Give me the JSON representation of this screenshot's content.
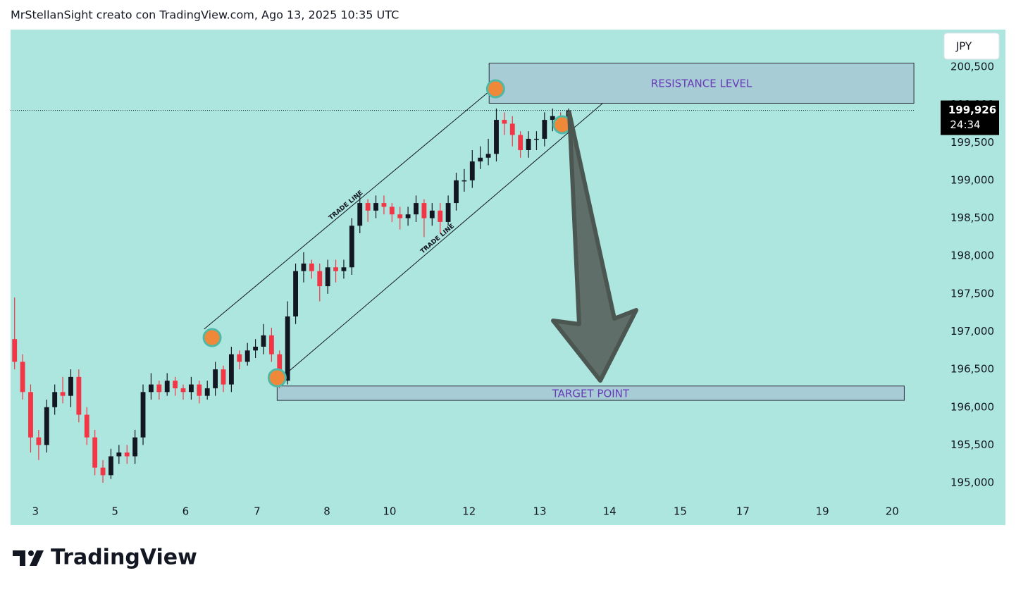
{
  "header": {
    "title": "MrStellanSight creato con TradingView.com, Ago 13, 2025 10:35 UTC",
    "brand": "TradingView"
  },
  "chart_data": {
    "type": "candlestick",
    "currency": "JPY",
    "up_color": "#131722",
    "down_color": "#f23645",
    "background": "#ade6df",
    "open": [
      196900,
      196600,
      196200,
      195600,
      195500,
      196000,
      196200,
      196150,
      196400,
      195900,
      195600,
      195200,
      195100,
      195350,
      195400,
      195350,
      195600,
      196200,
      196300,
      196200,
      196350,
      196250,
      196200,
      196300,
      196150,
      196250,
      196500,
      196300,
      196700,
      196600,
      196750,
      196800,
      196950,
      196700,
      196350,
      197200,
      197800,
      197900,
      197800,
      197600,
      197850,
      197800,
      197850,
      198400,
      198700,
      198600,
      198700,
      198650,
      198550,
      198500,
      198550,
      198700,
      198500,
      198600,
      198450,
      198700,
      199000,
      199000,
      199250,
      199300,
      199350,
      199800,
      199750,
      199600,
      199400,
      199550,
      199550,
      199800,
      199850,
      199750
    ],
    "high": [
      197450,
      196700,
      196300,
      195700,
      196100,
      196300,
      196400,
      196500,
      196500,
      196000,
      195700,
      195300,
      195450,
      195500,
      195500,
      195700,
      196300,
      196450,
      196350,
      196450,
      196400,
      196300,
      196400,
      196350,
      196350,
      196600,
      196550,
      196800,
      196750,
      196850,
      196900,
      197100,
      197050,
      196750,
      197400,
      197900,
      198050,
      197950,
      197900,
      197950,
      197950,
      197950,
      198500,
      198800,
      198750,
      198800,
      198800,
      198700,
      198650,
      198650,
      198800,
      198750,
      198700,
      198700,
      198800,
      199100,
      199150,
      199400,
      199450,
      199550,
      199950,
      199900,
      199850,
      199650,
      199650,
      199650,
      199900,
      199950,
      199900,
      199950
    ],
    "low": [
      196500,
      196100,
      195400,
      195300,
      195400,
      195900,
      196050,
      196000,
      195800,
      195500,
      195100,
      195000,
      195050,
      195250,
      195250,
      195250,
      195500,
      196100,
      196100,
      196150,
      196150,
      196100,
      196100,
      196050,
      196100,
      196150,
      196200,
      196200,
      196500,
      196550,
      196650,
      196700,
      196600,
      196250,
      196300,
      197100,
      197650,
      197700,
      197400,
      197500,
      197650,
      197700,
      197750,
      198300,
      198450,
      198500,
      198550,
      198450,
      198350,
      198400,
      198450,
      198250,
      198400,
      198300,
      198400,
      198600,
      198850,
      198900,
      199150,
      199200,
      199250,
      199600,
      199450,
      199300,
      199300,
      199400,
      199450,
      199650,
      199650,
      199650
    ],
    "close": [
      196600,
      196200,
      195600,
      195500,
      196000,
      196200,
      196150,
      196400,
      195900,
      195600,
      195200,
      195100,
      195350,
      195400,
      195350,
      195600,
      196200,
      196300,
      196200,
      196350,
      196250,
      196200,
      196300,
      196150,
      196250,
      196500,
      196300,
      196700,
      196600,
      196750,
      196800,
      196950,
      196700,
      196350,
      197200,
      197800,
      197900,
      197800,
      197600,
      197850,
      197800,
      197850,
      198400,
      198700,
      198600,
      198700,
      198650,
      198550,
      198500,
      198550,
      198700,
      198500,
      198600,
      198450,
      198700,
      199000,
      199000,
      199250,
      199300,
      199350,
      199800,
      199750,
      199600,
      199400,
      199550,
      199550,
      199800,
      199850,
      199750,
      199926
    ],
    "last_price": 199926,
    "last_price_label": "199,926",
    "countdown": "24:34",
    "xlim": [
      0,
      123.9
    ],
    "ylim": [
      194441,
      200994
    ],
    "xticks": [
      {
        "value": 3.1,
        "label": "3"
      },
      {
        "value": 13.0,
        "label": "5"
      },
      {
        "value": 21.8,
        "label": "6"
      },
      {
        "value": 30.7,
        "label": "7"
      },
      {
        "value": 39.4,
        "label": "8"
      },
      {
        "value": 47.2,
        "label": "10"
      },
      {
        "value": 57.1,
        "label": "12"
      },
      {
        "value": 65.9,
        "label": "13"
      },
      {
        "value": 74.6,
        "label": "14"
      },
      {
        "value": 83.4,
        "label": "15"
      },
      {
        "value": 91.2,
        "label": "17"
      },
      {
        "value": 101.1,
        "label": "19"
      },
      {
        "value": 109.8,
        "label": "20"
      }
    ],
    "yticks": [
      {
        "value": 195000,
        "label": "195,000"
      },
      {
        "value": 195500,
        "label": "195,500"
      },
      {
        "value": 196000,
        "label": "196,000"
      },
      {
        "value": 196500,
        "label": "196,500"
      },
      {
        "value": 197000,
        "label": "197,000"
      },
      {
        "value": 197500,
        "label": "197,500"
      },
      {
        "value": 198000,
        "label": "198,000"
      },
      {
        "value": 198500,
        "label": "198,500"
      },
      {
        "value": 199000,
        "label": "199,000"
      },
      {
        "value": 199500,
        "label": "199,500"
      },
      {
        "value": 200000,
        "label": "200,000"
      },
      {
        "value": 200500,
        "label": "200,500"
      }
    ],
    "zones": [
      {
        "label": "RESISTANCE LEVEL",
        "x": [
          59.6,
          112.5
        ],
        "y": [
          200020,
          200550
        ]
      },
      {
        "label": "TARGET POINT",
        "x": [
          33.2,
          111.3
        ],
        "y": [
          196090,
          196280
        ]
      }
    ],
    "trade_lines": [
      {
        "label": "TRADE LINE",
        "x": [
          24.1,
          60.1
        ],
        "y": [
          197032,
          200220
        ]
      },
      {
        "label": "TRADE LINE",
        "x": [
          33.3,
          73.7
        ],
        "y": [
          196352,
          200015
        ]
      }
    ],
    "markers": [
      {
        "x": 25.1,
        "y": 196920
      },
      {
        "x": 33.2,
        "y": 196389
      },
      {
        "x": 60.4,
        "y": 200211
      },
      {
        "x": 68.7,
        "y": 199736
      }
    ]
  }
}
